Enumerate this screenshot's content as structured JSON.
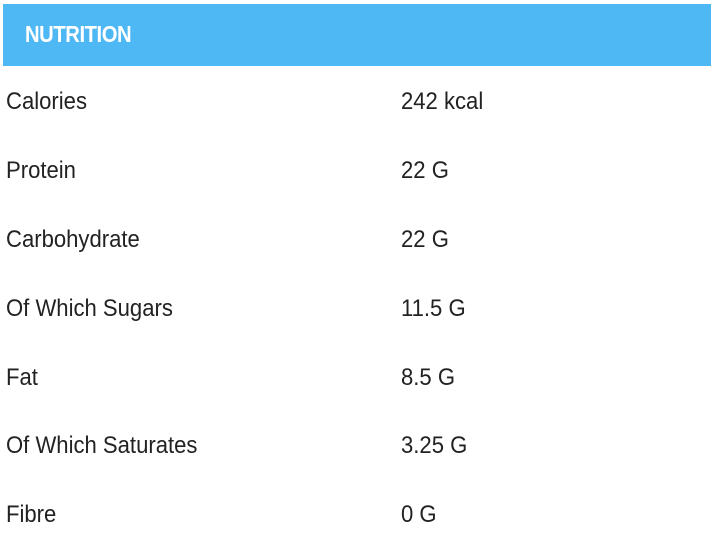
{
  "header": {
    "title": "NUTRITION",
    "color": "#4db8f4"
  },
  "rows": [
    {
      "label": "Calories",
      "value": "242 kcal"
    },
    {
      "label": "Protein",
      "value": "22 G"
    },
    {
      "label": "Carbohydrate",
      "value": "22 G"
    },
    {
      "label": "Of Which Sugars",
      "value": "11.5 G"
    },
    {
      "label": "Fat",
      "value": "8.5 G"
    },
    {
      "label": "Of Which Saturates",
      "value": "3.25 G"
    },
    {
      "label": "Fibre",
      "value": "0 G"
    }
  ]
}
